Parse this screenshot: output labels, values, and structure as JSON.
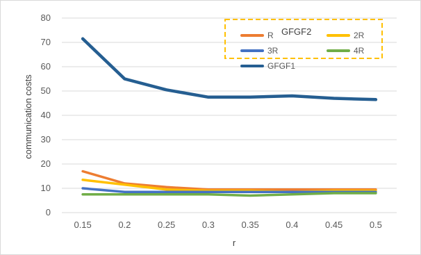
{
  "chart_data": {
    "type": "line",
    "title": "",
    "xlabel": "r",
    "ylabel": "communication costs",
    "categories": [
      "0.15",
      "0.2",
      "0.25",
      "0.3",
      "0.35",
      "0.4",
      "0.45",
      "0.5"
    ],
    "ylim": [
      0,
      80
    ],
    "yticks": [
      "0",
      "10",
      "20",
      "30",
      "40",
      "50",
      "60",
      "70",
      "80"
    ],
    "grid": "horizontal",
    "legend_label": "GFGF2",
    "legend_placement": "top-right",
    "series": [
      {
        "name": "R",
        "color": "#ED7D31",
        "values": [
          17.0,
          12.0,
          10.5,
          9.5,
          9.5,
          9.5,
          9.5,
          9.5
        ]
      },
      {
        "name": "2R",
        "color": "#FFC000",
        "values": [
          13.5,
          11.5,
          9.5,
          9.0,
          9.0,
          8.5,
          9.0,
          9.0
        ]
      },
      {
        "name": "3R",
        "color": "#4472C4",
        "values": [
          10.0,
          8.5,
          8.5,
          8.5,
          8.5,
          8.5,
          8.5,
          8.5
        ]
      },
      {
        "name": "4R",
        "color": "#70AD47",
        "values": [
          7.5,
          7.5,
          7.5,
          7.5,
          7.0,
          7.5,
          8.0,
          8.0
        ]
      },
      {
        "name": "GFGF1",
        "color": "#255E91",
        "values": [
          71.5,
          55.0,
          50.5,
          47.5,
          47.5,
          48.0,
          47.0,
          46.5
        ]
      }
    ]
  }
}
